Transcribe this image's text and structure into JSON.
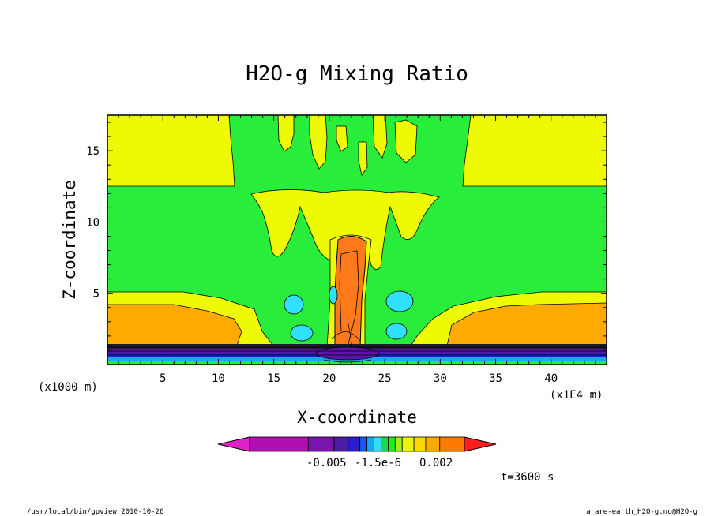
{
  "chart_data": {
    "type": "heatmap",
    "title": "H2O-g Mixing Ratio",
    "xlabel": "X-coordinate",
    "ylabel": "Z-coordinate",
    "x_unit_label": "(x1E4 m)",
    "y_unit_label": "(x1000 m)",
    "xlim": [
      0,
      45
    ],
    "ylim": [
      0,
      17.5
    ],
    "x_ticks": [
      5,
      10,
      15,
      20,
      25,
      30,
      35,
      40
    ],
    "y_ticks": [
      5,
      10,
      15
    ],
    "colorbar": {
      "tick_labels": [
        "-0.005",
        "-1.5e-6",
        "0.002"
      ],
      "colors": [
        "#e020c8",
        "#b010b0",
        "#7a14b0",
        "#4b1ca8",
        "#2a1ad2",
        "#1a5af0",
        "#12a8f5",
        "#2ee0ff",
        "#20d850",
        "#1cf01c",
        "#a0f01a",
        "#ecf500",
        "#ffd700",
        "#ffaa00",
        "#ff7a00",
        "#ff1e1e"
      ]
    },
    "fields": {
      "background_color": "#29ed3b",
      "high_color": "#eefa04",
      "mid_color": "#ffaa00",
      "core_color": "#ff7a1a",
      "low_color": "#2fe0ff",
      "surface_colors": [
        "#1a1a2a",
        "#5a14a8",
        "#2222c8",
        "#1aa8f5",
        "#29ed3b"
      ]
    },
    "time_label": "t=3600 s"
  },
  "footer": {
    "left": "/usr/local/bin/gpview  2010-10-26",
    "right": "arare-earth_H2O-g.nc@H2O-g"
  }
}
